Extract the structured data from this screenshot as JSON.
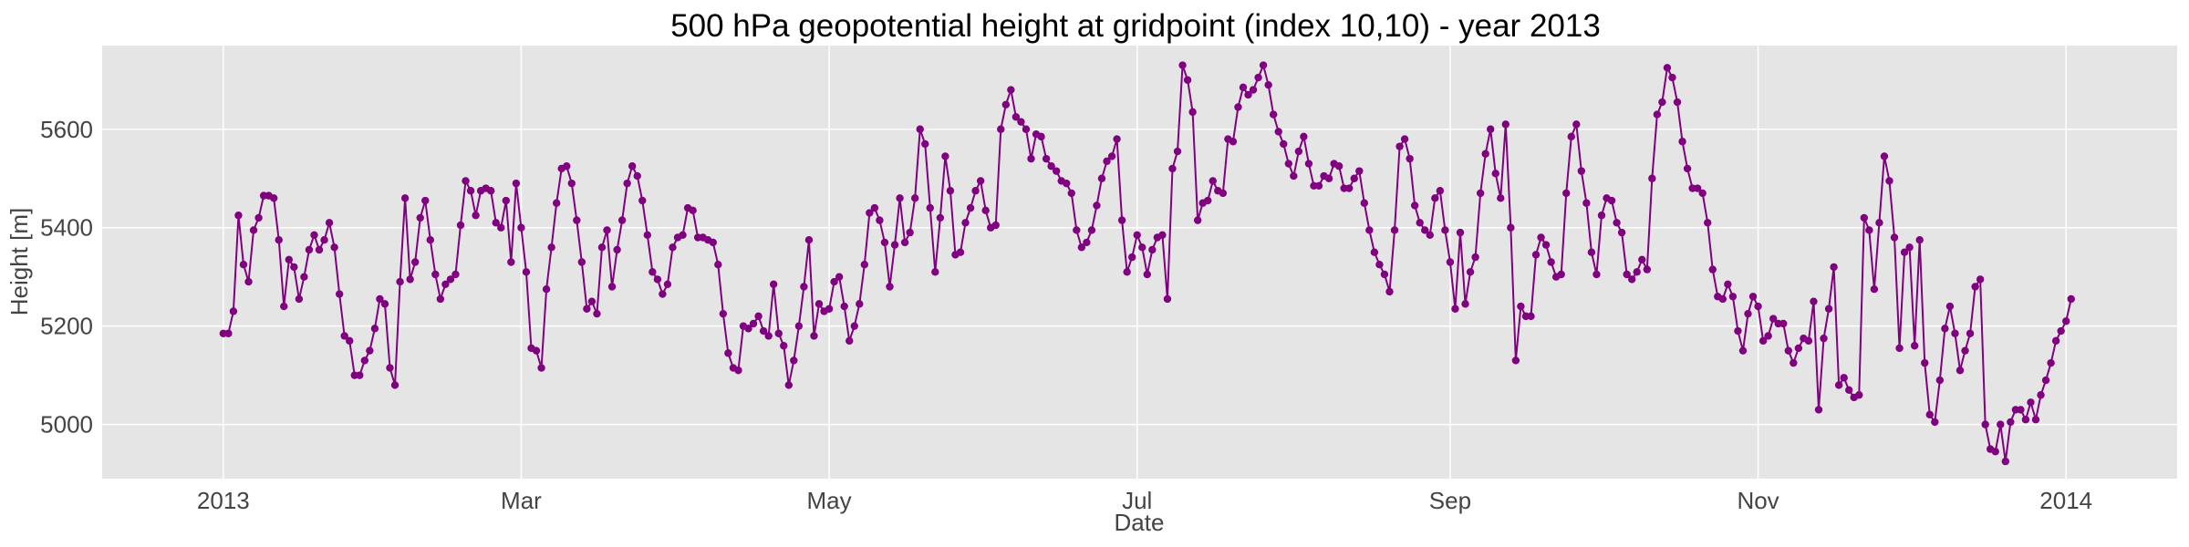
{
  "chart_data": {
    "type": "line",
    "title": "500 hPa geopotential height at gridpoint (index 10,10) - year 2013",
    "xlabel": "Date",
    "ylabel": "Height [m]",
    "xlim": [
      "2012-12-08",
      "2014-01-23"
    ],
    "ylim": [
      4890,
      5770
    ],
    "x_ticks": [
      {
        "date": "2013-01-01",
        "label": "2013"
      },
      {
        "date": "2013-03-01",
        "label": "Mar"
      },
      {
        "date": "2013-05-01",
        "label": "May"
      },
      {
        "date": "2013-07-01",
        "label": "Jul"
      },
      {
        "date": "2013-09-01",
        "label": "Sep"
      },
      {
        "date": "2013-11-01",
        "label": "Nov"
      },
      {
        "date": "2014-01-01",
        "label": "2014"
      }
    ],
    "y_ticks": [
      5000,
      5200,
      5400,
      5600
    ],
    "grid": true,
    "background": "#e5e5e5",
    "series": [
      {
        "color": "#800080",
        "marker": "circle",
        "start_date": "2013-01-01",
        "step": "1 day",
        "values": [
          5185,
          5185,
          5230,
          5425,
          5325,
          5290,
          5395,
          5420,
          5465,
          5465,
          5460,
          5375,
          5240,
          5335,
          5320,
          5255,
          5300,
          5355,
          5385,
          5355,
          5375,
          5410,
          5360,
          5265,
          5180,
          5170,
          5100,
          5100,
          5130,
          5150,
          5195,
          5255,
          5245,
          5115,
          5080,
          5290,
          5460,
          5295,
          5330,
          5420,
          5455,
          5375,
          5305,
          5255,
          5285,
          5295,
          5305,
          5405,
          5495,
          5475,
          5425,
          5475,
          5480,
          5475,
          5410,
          5400,
          5455,
          5330,
          5490,
          5400,
          5310,
          5155,
          5150,
          5115,
          5275,
          5360,
          5450,
          5520,
          5525,
          5490,
          5415,
          5330,
          5235,
          5250,
          5225,
          5360,
          5395,
          5280,
          5355,
          5415,
          5490,
          5525,
          5505,
          5455,
          5385,
          5310,
          5295,
          5265,
          5285,
          5360,
          5380,
          5385,
          5440,
          5435,
          5380,
          5380,
          5375,
          5370,
          5325,
          5225,
          5145,
          5115,
          5110,
          5200,
          5195,
          5205,
          5220,
          5190,
          5180,
          5285,
          5185,
          5160,
          5080,
          5130,
          5200,
          5280,
          5375,
          5180,
          5245,
          5230,
          5235,
          5290,
          5300,
          5240,
          5170,
          5200,
          5245,
          5325,
          5430,
          5440,
          5415,
          5370,
          5280,
          5365,
          5460,
          5370,
          5390,
          5460,
          5600,
          5570,
          5440,
          5310,
          5420,
          5545,
          5475,
          5345,
          5350,
          5410,
          5440,
          5475,
          5495,
          5435,
          5400,
          5405,
          5600,
          5650,
          5680,
          5625,
          5615,
          5600,
          5540,
          5590,
          5585,
          5540,
          5525,
          5515,
          5495,
          5490,
          5470,
          5395,
          5360,
          5370,
          5395,
          5445,
          5500,
          5535,
          5545,
          5580,
          5415,
          5310,
          5340,
          5385,
          5360,
          5305,
          5355,
          5380,
          5385,
          5255,
          5520,
          5555,
          5730,
          5700,
          5635,
          5415,
          5450,
          5455,
          5495,
          5475,
          5470,
          5580,
          5575,
          5645,
          5685,
          5670,
          5680,
          5705,
          5730,
          5690,
          5630,
          5595,
          5570,
          5530,
          5505,
          5555,
          5585,
          5530,
          5485,
          5485,
          5505,
          5500,
          5530,
          5525,
          5480,
          5480,
          5500,
          5515,
          5450,
          5395,
          5350,
          5325,
          5305,
          5270,
          5395,
          5565,
          5580,
          5540,
          5445,
          5410,
          5395,
          5385,
          5460,
          5475,
          5395,
          5330,
          5235,
          5390,
          5245,
          5310,
          5340,
          5470,
          5550,
          5600,
          5510,
          5460,
          5610,
          5400,
          5130,
          5240,
          5220,
          5220,
          5345,
          5380,
          5365,
          5330,
          5300,
          5305,
          5470,
          5585,
          5610,
          5515,
          5450,
          5350,
          5305,
          5425,
          5460,
          5455,
          5410,
          5390,
          5305,
          5295,
          5310,
          5335,
          5315,
          5500,
          5630,
          5655,
          5725,
          5705,
          5655,
          5575,
          5520,
          5480,
          5480,
          5470,
          5410,
          5315,
          5260,
          5255,
          5285,
          5260,
          5190,
          5150,
          5225,
          5260,
          5240,
          5170,
          5180,
          5215,
          5205,
          5205,
          5150,
          5125,
          5155,
          5175,
          5170,
          5250,
          5030,
          5175,
          5235,
          5320,
          5080,
          5095,
          5070,
          5055,
          5060,
          5420,
          5395,
          5275,
          5410,
          5545,
          5495,
          5380,
          5155,
          5350,
          5360,
          5160,
          5375,
          5125,
          5020,
          5005,
          5090,
          5195,
          5240,
          5185,
          5110,
          5150,
          5185,
          5280,
          5295,
          5000,
          4950,
          4945,
          5000,
          4925,
          5005,
          5030,
          5030,
          5010,
          5045,
          5010,
          5060,
          5090,
          5125,
          5170,
          5190,
          5210,
          5255
        ]
      }
    ]
  }
}
